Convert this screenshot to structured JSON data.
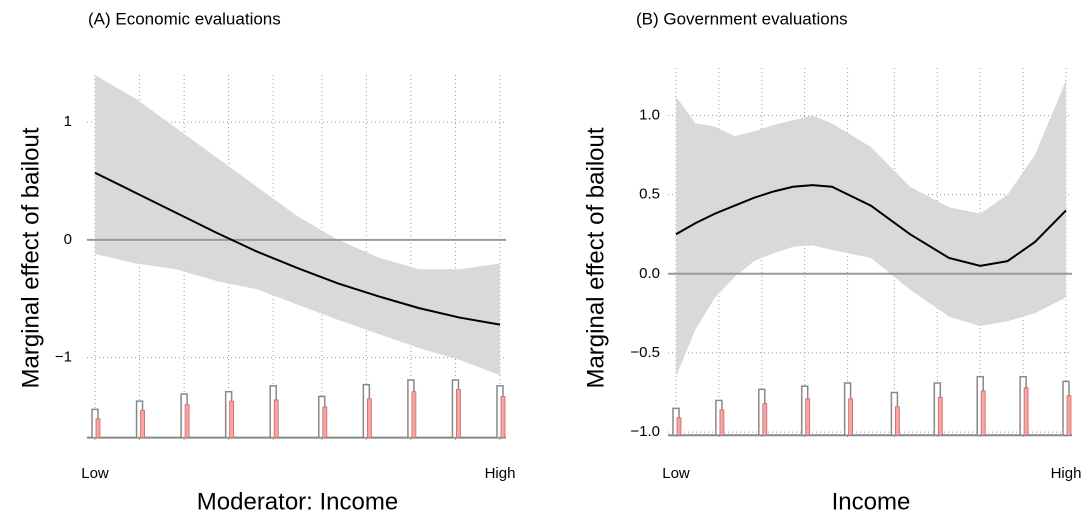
{
  "chart_data": [
    {
      "type": "line",
      "title": "(A) Economic evaluations",
      "y_label": "Marginal effect of bailout",
      "x_label": "Moderator: Income",
      "xlim": [
        0,
        1
      ],
      "xticks": [
        {
          "value": 0,
          "label": "Low"
        },
        {
          "value": 1,
          "label": "High"
        }
      ],
      "ylim": [
        -1.7,
        1.4
      ],
      "yticks": [
        1,
        0,
        {
          "value": -1,
          "label": "−1"
        }
      ],
      "grid": true,
      "hline": 0,
      "x": [
        0,
        0.1,
        0.2,
        0.3,
        0.4,
        0.5,
        0.6,
        0.7,
        0.8,
        0.9,
        1
      ],
      "series": [
        {
          "color": "#000000",
          "values": [
            0.57,
            0.4,
            0.23,
            0.06,
            -0.1,
            -0.24,
            -0.37,
            -0.48,
            -0.58,
            -0.66,
            -0.72
          ]
        }
      ],
      "band": {
        "color": "#d9d9d9",
        "upper": [
          1.4,
          1.2,
          0.95,
          0.7,
          0.45,
          0.2,
          0.0,
          -0.15,
          -0.25,
          -0.25,
          -0.2
        ],
        "lower": [
          -0.12,
          -0.2,
          -0.25,
          -0.35,
          -0.42,
          -0.55,
          -0.68,
          -0.8,
          -0.92,
          -1.02,
          -1.15
        ]
      },
      "histogram": {
        "x": [
          0,
          0.11,
          0.22,
          0.33,
          0.44,
          0.56,
          0.67,
          0.78,
          0.89,
          1
        ],
        "base": -1.68,
        "outline_color": "#888888",
        "fill_color": "#f4a6a6",
        "outline_tops": [
          -1.44,
          -1.37,
          -1.31,
          -1.29,
          -1.24,
          -1.33,
          -1.23,
          -1.19,
          -1.19,
          -1.24
        ],
        "fill_tops": [
          -1.52,
          -1.45,
          -1.4,
          -1.37,
          -1.36,
          -1.42,
          -1.35,
          -1.29,
          -1.27,
          -1.33
        ]
      }
    },
    {
      "type": "line",
      "title": "(B) Government evaluations",
      "y_label": "Marginal effect of bailout",
      "x_label": "Income",
      "xlim": [
        0,
        1
      ],
      "xticks": [
        {
          "value": 0,
          "label": "Low"
        },
        {
          "value": 1,
          "label": "High"
        }
      ],
      "ylim": [
        -1.05,
        1.3
      ],
      "yticks": [
        {
          "value": 1,
          "label": "1.0"
        },
        0.5,
        {
          "value": 0,
          "label": "0.0"
        },
        {
          "value": -0.5,
          "label": "−0.5"
        },
        {
          "value": -1,
          "label": "−1.0"
        }
      ],
      "grid": true,
      "hline": 0,
      "x": [
        0,
        0.05,
        0.1,
        0.15,
        0.2,
        0.25,
        0.3,
        0.35,
        0.4,
        0.5,
        0.6,
        0.7,
        0.78,
        0.85,
        0.92,
        1
      ],
      "series": [
        {
          "color": "#000000",
          "values": [
            0.25,
            0.32,
            0.38,
            0.43,
            0.48,
            0.52,
            0.55,
            0.56,
            0.55,
            0.43,
            0.25,
            0.1,
            0.05,
            0.08,
            0.2,
            0.4
          ]
        }
      ],
      "band": {
        "color": "#d9d9d9",
        "upper": [
          1.12,
          0.95,
          0.93,
          0.87,
          0.9,
          0.94,
          0.97,
          1.0,
          0.95,
          0.8,
          0.55,
          0.42,
          0.38,
          0.5,
          0.75,
          1.22
        ],
        "lower": [
          -0.65,
          -0.35,
          -0.15,
          -0.02,
          0.08,
          0.13,
          0.17,
          0.18,
          0.15,
          0.1,
          -0.1,
          -0.27,
          -0.33,
          -0.3,
          -0.25,
          -0.15
        ]
      },
      "histogram": {
        "x": [
          0,
          0.11,
          0.22,
          0.33,
          0.44,
          0.56,
          0.67,
          0.78,
          0.89,
          1
        ],
        "base": -1.02,
        "outline_color": "#888888",
        "fill_color": "#f4a6a6",
        "outline_tops": [
          -0.85,
          -0.8,
          -0.73,
          -0.71,
          -0.69,
          -0.75,
          -0.69,
          -0.65,
          -0.65,
          -0.68
        ],
        "fill_tops": [
          -0.91,
          -0.86,
          -0.82,
          -0.79,
          -0.79,
          -0.84,
          -0.78,
          -0.74,
          -0.72,
          -0.77
        ]
      }
    }
  ]
}
